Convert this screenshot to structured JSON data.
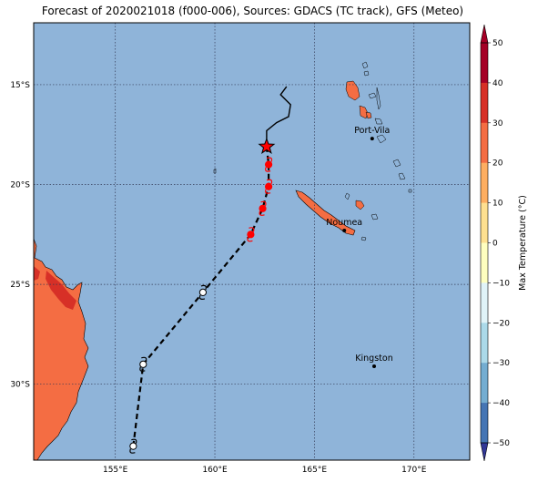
{
  "title": "Forecast of 2020021018 (f000-006), Sources: GDACS (TC track), GFS (Meteo)",
  "axes": {
    "lon_ticks": [
      "155°E",
      "160°E",
      "165°E",
      "170°E"
    ],
    "lat_ticks": [
      "15°S",
      "20°S",
      "25°S",
      "30°S"
    ]
  },
  "places": [
    {
      "name": "Port-Vila",
      "lon": 167.9,
      "lat": -17.7
    },
    {
      "name": "Noumea",
      "lon": 166.5,
      "lat": -22.3
    },
    {
      "name": "Kingston",
      "lon": 168.0,
      "lat": -29.1
    }
  ],
  "track": {
    "observed": [
      [
        163.6,
        -15.1
      ],
      [
        163.3,
        -15.5
      ],
      [
        163.8,
        -16.0
      ],
      [
        163.7,
        -16.6
      ],
      [
        163.1,
        -16.9
      ],
      [
        162.6,
        -17.3
      ],
      [
        162.6,
        -18.1
      ]
    ],
    "forecast": [
      [
        162.6,
        -18.1
      ],
      [
        162.7,
        -19.0
      ],
      [
        162.7,
        -20.1
      ],
      [
        162.4,
        -21.2
      ],
      [
        161.8,
        -22.5
      ],
      [
        159.4,
        -25.4
      ],
      [
        156.4,
        -29.0
      ],
      [
        155.9,
        -33.1
      ]
    ],
    "current_position": [
      162.6,
      -18.1
    ],
    "storm_markers": [
      {
        "lon": 162.7,
        "lat": -19.0,
        "color": "#ff0000"
      },
      {
        "lon": 162.7,
        "lat": -20.1,
        "color": "#ff0000"
      },
      {
        "lon": 162.4,
        "lat": -21.2,
        "color": "#ff0000"
      },
      {
        "lon": 161.8,
        "lat": -22.5,
        "color": "#ff0000"
      },
      {
        "lon": 159.4,
        "lat": -25.4,
        "color": "#ffffff"
      },
      {
        "lon": 156.4,
        "lat": -29.0,
        "color": "#ffffff"
      },
      {
        "lon": 155.9,
        "lat": -33.1,
        "color": "#ffffff"
      }
    ]
  },
  "colorbar": {
    "label": "Max Temperature (°C)",
    "ticks": [
      "50",
      "40",
      "30",
      "20",
      "10",
      "0",
      "−10",
      "−20",
      "−30",
      "−40",
      "−50"
    ],
    "colors": [
      "#a50026",
      "#d73027",
      "#f46d43",
      "#fdae61",
      "#fee090",
      "#ffffbf",
      "#e0f3f8",
      "#abd9e9",
      "#74add1",
      "#4575b4",
      "#313695"
    ]
  },
  "colors": {
    "ocean": "#8fb4d9",
    "land": "#f46d43",
    "land_hot": "#d73027"
  }
}
